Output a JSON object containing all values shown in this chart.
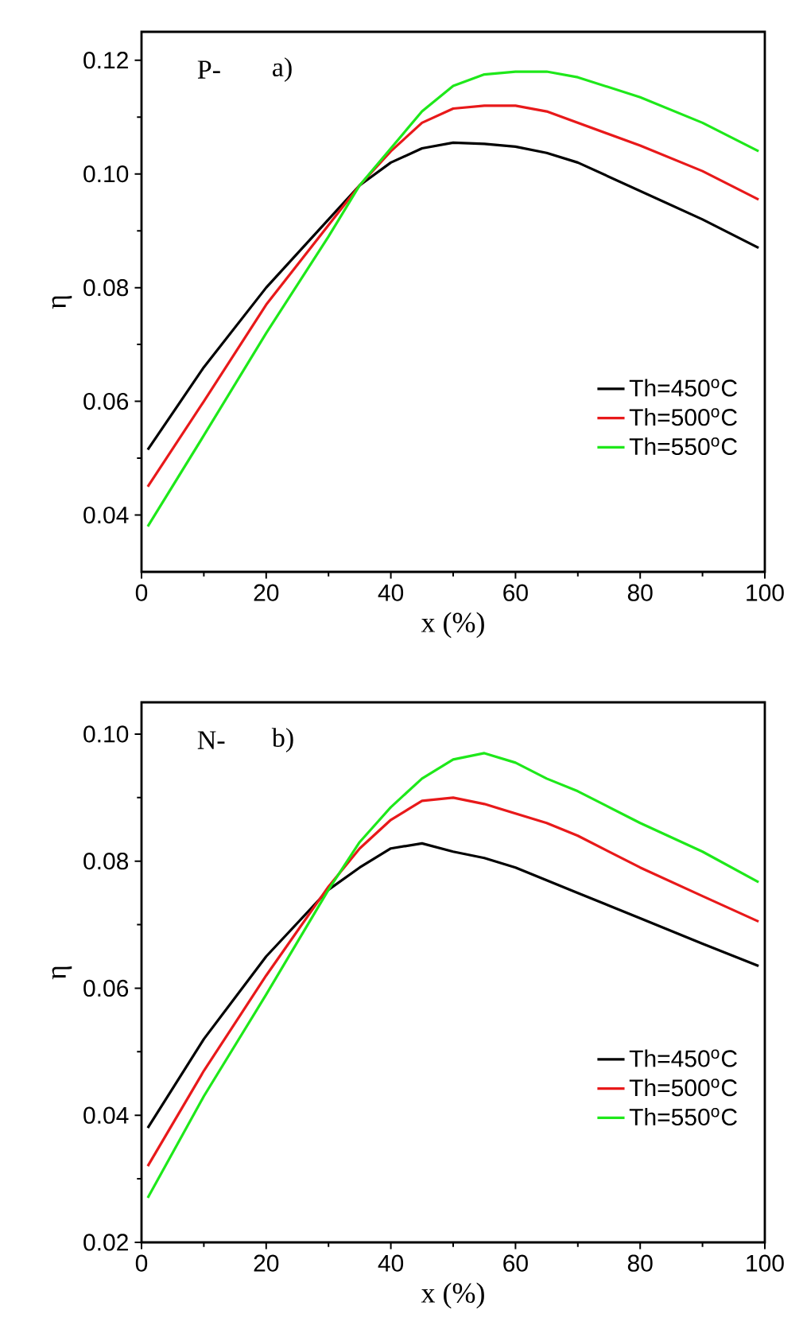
{
  "chart_data": [
    {
      "type": "line",
      "xlabel": "x (%)",
      "ylabel": "η",
      "annotations": [
        "P-",
        "a)"
      ],
      "x": [
        1,
        10,
        20,
        30,
        35,
        40,
        45,
        50,
        55,
        60,
        65,
        70,
        80,
        90,
        99
      ],
      "xlim": [
        0,
        100
      ],
      "ylim": [
        0.03,
        0.125
      ],
      "xticks": [
        0,
        20,
        40,
        60,
        80,
        100
      ],
      "yticks": [
        {
          "value": 0.04,
          "label": "0.04"
        },
        {
          "value": 0.06,
          "label": "0.06"
        },
        {
          "value": 0.08,
          "label": "0.08"
        },
        {
          "value": 0.1,
          "label": "0.10"
        },
        {
          "value": 0.12,
          "label": "0.12"
        }
      ],
      "legend": "bottom right",
      "line_style": "solid",
      "series": [
        {
          "name": "Th=450$^{o}$C",
          "color": "#000000",
          "values": [
            0.0515,
            0.066,
            0.08,
            0.092,
            0.098,
            0.102,
            0.1045,
            0.1055,
            0.1053,
            0.1048,
            0.1037,
            0.102,
            0.097,
            0.092,
            0.087
          ]
        },
        {
          "name": "Th=500$^{o}$C",
          "color": "#e8191a",
          "values": [
            0.045,
            0.06,
            0.077,
            0.091,
            0.098,
            0.104,
            0.109,
            0.1115,
            0.112,
            0.112,
            0.111,
            0.109,
            0.105,
            0.1005,
            0.0955
          ]
        },
        {
          "name": "Th=550$^{o}$C",
          "color": "#1ee81a",
          "values": [
            0.038,
            0.054,
            0.072,
            0.089,
            0.098,
            0.1045,
            0.111,
            0.1155,
            0.1175,
            0.118,
            0.118,
            0.117,
            0.1135,
            0.109,
            0.104
          ]
        }
      ]
    },
    {
      "type": "line",
      "xlabel": "x (%)",
      "ylabel": "η",
      "annotations": [
        "N-",
        "b)"
      ],
      "x": [
        1,
        10,
        20,
        30,
        35,
        40,
        45,
        50,
        55,
        60,
        65,
        70,
        80,
        90,
        99
      ],
      "xlim": [
        0,
        100
      ],
      "ylim": [
        0.02,
        0.105
      ],
      "xticks": [
        0,
        20,
        40,
        60,
        80,
        100
      ],
      "yticks": [
        {
          "value": 0.02,
          "label": "0.02"
        },
        {
          "value": 0.04,
          "label": "0.04"
        },
        {
          "value": 0.06,
          "label": "0.06"
        },
        {
          "value": 0.08,
          "label": "0.08"
        },
        {
          "value": 0.1,
          "label": "0.10"
        }
      ],
      "legend": "bottom right",
      "line_style": "solid",
      "series": [
        {
          "name": "Th=450$^{o}$C",
          "color": "#000000",
          "values": [
            0.038,
            0.052,
            0.065,
            0.0755,
            0.079,
            0.082,
            0.0828,
            0.0815,
            0.0805,
            0.079,
            0.077,
            0.075,
            0.071,
            0.067,
            0.0635
          ]
        },
        {
          "name": "Th=500$^{o}$C",
          "color": "#e8191a",
          "values": [
            0.032,
            0.047,
            0.062,
            0.076,
            0.082,
            0.0865,
            0.0895,
            0.09,
            0.089,
            0.0875,
            0.086,
            0.084,
            0.079,
            0.0745,
            0.0705
          ]
        },
        {
          "name": "Th=550$^{o}$C",
          "color": "#1ee81a",
          "values": [
            0.027,
            0.043,
            0.059,
            0.0755,
            0.083,
            0.0885,
            0.093,
            0.096,
            0.097,
            0.0955,
            0.093,
            0.091,
            0.086,
            0.0815,
            0.0767
          ]
        }
      ]
    }
  ]
}
